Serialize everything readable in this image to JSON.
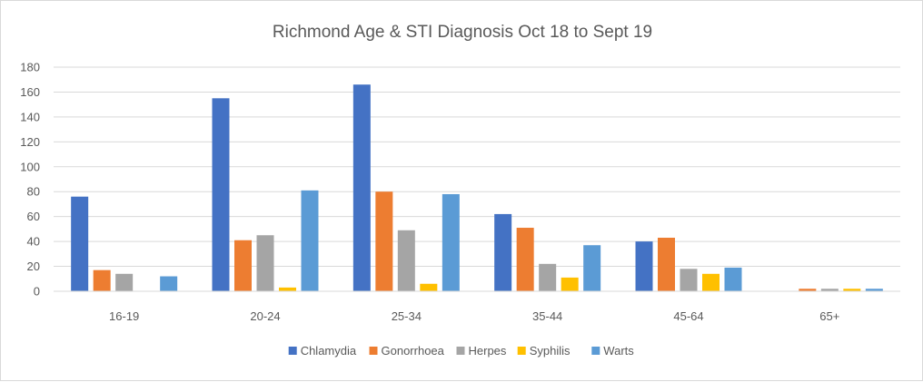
{
  "chart_data": {
    "type": "bar",
    "title": "Richmond  Age & STI Diagnosis Oct 18 to Sept 19",
    "xlabel": "",
    "ylabel": "",
    "ylim": [
      0,
      180
    ],
    "yticks": [
      0,
      20,
      40,
      60,
      80,
      100,
      120,
      140,
      160,
      180
    ],
    "grid": true,
    "legend": "bottom",
    "categories": [
      "16-19",
      "20-24",
      "25-34",
      "35-44",
      "45-64",
      "65+"
    ],
    "series": [
      {
        "name": "Chlamydia",
        "color": "#4472c4",
        "values": [
          76,
          155,
          166,
          62,
          40,
          0
        ]
      },
      {
        "name": "Gonorrhoea",
        "color": "#ed7d31",
        "values": [
          17,
          41,
          80,
          51,
          43,
          2
        ]
      },
      {
        "name": "Herpes",
        "color": "#a5a5a5",
        "values": [
          14,
          45,
          49,
          22,
          18,
          2
        ]
      },
      {
        "name": "Syphilis",
        "color": "#ffc000",
        "values": [
          0,
          3,
          6,
          11,
          14,
          2
        ]
      },
      {
        "name": "Warts",
        "color": "#5b9bd5",
        "values": [
          12,
          81,
          78,
          37,
          19,
          2
        ]
      }
    ]
  }
}
